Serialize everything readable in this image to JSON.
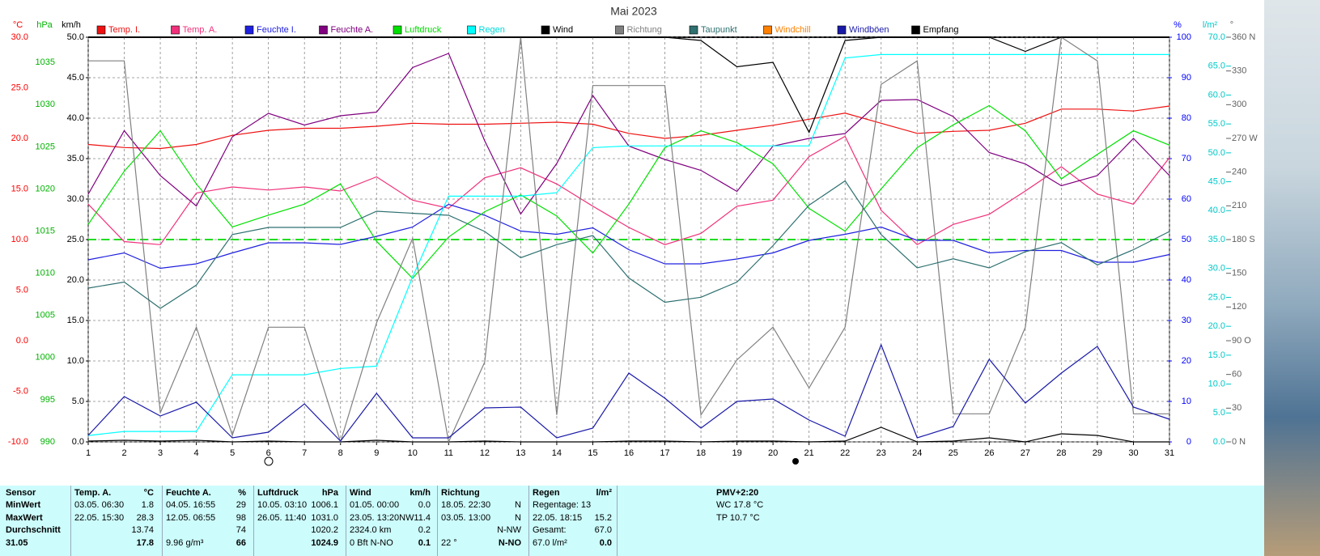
{
  "chart_data": {
    "type": "line",
    "title": "Mai 2023",
    "x": [
      1,
      2,
      3,
      4,
      5,
      6,
      7,
      8,
      9,
      10,
      11,
      12,
      13,
      14,
      15,
      16,
      17,
      18,
      19,
      20,
      21,
      22,
      23,
      24,
      25,
      26,
      27,
      28,
      29,
      30,
      31
    ],
    "xlim": [
      1,
      31
    ],
    "xticks": [
      1,
      2,
      3,
      4,
      5,
      6,
      7,
      8,
      9,
      10,
      11,
      12,
      13,
      14,
      15,
      16,
      17,
      18,
      19,
      20,
      21,
      22,
      23,
      24,
      25,
      26,
      27,
      28,
      29,
      30,
      31
    ],
    "grid": true,
    "axes": [
      {
        "id": "temp",
        "unit": "°C",
        "color": "#ff0000",
        "ylim": [
          -10,
          30
        ],
        "yticks": [
          {
            "value": -10,
            "label": "-10.0"
          },
          {
            "value": -5,
            "label": "-5.0"
          },
          {
            "value": 0,
            "label": "0.0"
          },
          {
            "value": 5,
            "label": "5.0"
          },
          {
            "value": 10,
            "label": "10.0"
          },
          {
            "value": 15,
            "label": "15.0"
          },
          {
            "value": 20,
            "label": "20.0"
          },
          {
            "value": 25,
            "label": "25.0"
          },
          {
            "value": 30,
            "label": "30.0"
          }
        ]
      },
      {
        "id": "pressure",
        "unit": "hPa",
        "color": "#00b400",
        "ylim": [
          990,
          1038
        ],
        "yticks": [
          990,
          995,
          1000,
          1005,
          1010,
          1015,
          1020,
          1025,
          1030,
          1035
        ]
      },
      {
        "id": "wind",
        "unit": "km/h",
        "color": "#000000",
        "ylim": [
          0,
          50
        ],
        "yticks": [
          {
            "value": 0,
            "label": "0.0"
          },
          {
            "value": 5,
            "label": "5.0"
          },
          {
            "value": 10,
            "label": "10.0"
          },
          {
            "value": 15,
            "label": "15.0"
          },
          {
            "value": 20,
            "label": "20.0"
          },
          {
            "value": 25,
            "label": "25.0"
          },
          {
            "value": 30,
            "label": "30.0"
          },
          {
            "value": 35,
            "label": "35.0"
          },
          {
            "value": 40,
            "label": "40.0"
          },
          {
            "value": 45,
            "label": "45.0"
          },
          {
            "value": 50,
            "label": "50.0"
          }
        ]
      },
      {
        "id": "humidity",
        "unit": "%",
        "color": "#0000ff",
        "ylim": [
          0,
          100
        ],
        "yticks": [
          0,
          10,
          20,
          30,
          40,
          50,
          60,
          70,
          80,
          90,
          100
        ]
      },
      {
        "id": "rain",
        "unit": "l/m²",
        "color": "#00c8c8",
        "ylim": [
          0,
          70
        ],
        "yticks": [
          {
            "value": 0,
            "label": "0.0"
          },
          {
            "value": 5,
            "label": "5.0"
          },
          {
            "value": 10,
            "label": "10.0"
          },
          {
            "value": 15,
            "label": "15.0"
          },
          {
            "value": 20,
            "label": "20.0"
          },
          {
            "value": 25,
            "label": "25.0"
          },
          {
            "value": 30,
            "label": "30.0"
          },
          {
            "value": 35,
            "label": "35.0"
          },
          {
            "value": 40,
            "label": "40.0"
          },
          {
            "value": 45,
            "label": "45.0"
          },
          {
            "value": 50,
            "label": "50.0"
          },
          {
            "value": 55,
            "label": "55.0"
          },
          {
            "value": 60,
            "label": "60.0"
          },
          {
            "value": 65,
            "label": "65.0"
          },
          {
            "value": 70,
            "label": "70.0"
          }
        ]
      },
      {
        "id": "direction",
        "unit": "°",
        "color": "#606060",
        "ylim": [
          0,
          360
        ],
        "yticks": [
          {
            "value": 0,
            "label": "0 N"
          },
          30,
          60,
          {
            "value": 90,
            "label": "90 O"
          },
          120,
          150,
          {
            "value": 180,
            "label": "180 S"
          },
          210,
          240,
          {
            "value": 270,
            "label": "270 W"
          },
          300,
          330,
          {
            "value": 360,
            "label": "360 N"
          }
        ]
      }
    ],
    "reference_line": {
      "axis": "direction",
      "value": 180,
      "color": "#22dd22"
    },
    "series": [
      {
        "name": "Temp. I.",
        "color": "#ee1111",
        "axis": "temp",
        "values": [
          19.4,
          19.1,
          19.0,
          19.4,
          20.3,
          20.8,
          21.0,
          21.0,
          21.2,
          21.5,
          21.4,
          21.4,
          21.5,
          21.6,
          21.4,
          20.5,
          20.0,
          20.3,
          20.8,
          21.3,
          21.9,
          22.5,
          21.5,
          20.5,
          20.7,
          20.8,
          21.5,
          22.9,
          22.9,
          22.7,
          23.2
        ]
      },
      {
        "name": "Temp. A.",
        "color": "#f0307a",
        "axis": "temp",
        "values": [
          13.5,
          9.8,
          9.5,
          14.6,
          15.2,
          14.9,
          15.2,
          14.8,
          16.2,
          13.9,
          13.1,
          16.1,
          17.1,
          15.5,
          13.3,
          11.2,
          9.5,
          10.6,
          13.3,
          13.9,
          18.2,
          20.2,
          12.9,
          9.5,
          11.5,
          12.5,
          14.8,
          17.2,
          14.5,
          13.5,
          18.1
        ]
      },
      {
        "name": "Feuchte I.",
        "color": "#2020e0",
        "axis": "humidity",
        "values": [
          45.0,
          46.7,
          42.9,
          44.0,
          46.7,
          49.2,
          49.2,
          48.8,
          50.8,
          53.1,
          58.7,
          56.0,
          52.1,
          51.3,
          52.9,
          47.5,
          44.0,
          44.0,
          45.2,
          46.7,
          49.8,
          51.3,
          53.1,
          49.8,
          49.8,
          46.7,
          47.3,
          47.3,
          44.4,
          44.4,
          46.3
        ]
      },
      {
        "name": "Feuchte A.",
        "color": "#800080",
        "axis": "humidity",
        "values": [
          61.2,
          76.9,
          65.8,
          58.3,
          75.4,
          81.2,
          78.3,
          80.6,
          81.5,
          92.5,
          96.0,
          74.4,
          56.3,
          68.8,
          85.6,
          73.1,
          69.8,
          67.1,
          61.9,
          73.1,
          75.0,
          76.2,
          84.4,
          84.6,
          80.4,
          71.5,
          68.7,
          63.3,
          65.8,
          75.0,
          65.8
        ]
      },
      {
        "name": "Luftdruck",
        "color": "#00e000",
        "axis": "pressure",
        "values": [
          1015.8,
          1022.1,
          1026.9,
          1020.6,
          1015.5,
          1016.9,
          1018.2,
          1020.6,
          1013.8,
          1009.4,
          1014.3,
          1017.3,
          1019.3,
          1016.8,
          1012.4,
          1018.2,
          1024.9,
          1026.9,
          1025.5,
          1023.0,
          1017.7,
          1015.0,
          1020.0,
          1024.9,
          1027.6,
          1029.9,
          1026.9,
          1021.2,
          1024.1,
          1026.9,
          1025.2
        ]
      },
      {
        "name": "Regen",
        "color": "#00ffff",
        "axis": "rain",
        "values": [
          1.1,
          1.8,
          1.8,
          1.8,
          11.6,
          11.6,
          11.6,
          12.7,
          13.1,
          28.5,
          42.5,
          42.5,
          42.5,
          43.1,
          50.9,
          51.2,
          51.2,
          51.2,
          51.2,
          51.2,
          51.2,
          66.4,
          67.0,
          67.0,
          67.0,
          67.0,
          67.0,
          67.0,
          67.0,
          67.0,
          67.0
        ]
      },
      {
        "name": "Wind",
        "color": "#000000",
        "axis": "wind",
        "values": [
          0.1,
          0.2,
          0.1,
          0.2,
          0.0,
          0.1,
          0.0,
          0.0,
          0.2,
          0.0,
          0.0,
          0.1,
          0.0,
          0.0,
          0.0,
          0.1,
          0.1,
          0.0,
          0.1,
          0.1,
          0.0,
          0.1,
          1.8,
          0.0,
          0.1,
          0.5,
          0.0,
          1.0,
          0.8,
          0.0,
          0.0
        ]
      },
      {
        "name": "Richtung",
        "color": "#808080",
        "axis": "direction",
        "values": [
          339,
          339,
          26,
          102,
          6,
          102,
          102,
          0,
          106,
          181,
          0,
          71,
          360,
          24,
          317,
          317,
          317,
          24,
          73,
          102,
          48,
          102,
          318,
          339,
          25,
          25,
          102,
          360,
          339,
          25,
          25
        ]
      },
      {
        "name": "Taupunkt",
        "color": "#2f7070",
        "axis": "temp",
        "values": [
          5.2,
          5.8,
          3.2,
          5.5,
          10.5,
          11.2,
          11.2,
          11.2,
          12.8,
          12.6,
          12.4,
          10.8,
          8.2,
          9.5,
          10.4,
          6.2,
          3.8,
          4.3,
          5.8,
          9.4,
          13.4,
          15.8,
          10.5,
          7.2,
          8.1,
          7.2,
          8.8,
          9.7,
          7.5,
          9.0,
          10.8
        ]
      },
      {
        "name": "Windchill",
        "color": "#ff8000",
        "axis": "temp",
        "values": [
          null,
          null,
          null,
          null,
          null,
          null,
          null,
          null,
          null,
          null,
          null,
          null,
          null,
          null,
          null,
          null,
          null,
          null,
          null,
          null,
          null,
          null,
          null,
          null,
          null,
          null,
          null,
          null,
          null,
          null,
          null
        ]
      },
      {
        "name": "Windböen",
        "color": "#1a1aa8",
        "axis": "wind",
        "values": [
          0.8,
          5.6,
          3.2,
          4.9,
          0.5,
          1.2,
          4.7,
          0.1,
          6.0,
          0.5,
          0.5,
          4.2,
          4.3,
          0.5,
          1.7,
          8.5,
          5.4,
          1.7,
          5.0,
          5.3,
          2.7,
          0.7,
          12.0,
          0.5,
          1.9,
          10.2,
          4.8,
          8.5,
          11.8,
          4.3,
          2.8
        ]
      },
      {
        "name": "Empfang",
        "color": "#000000",
        "axis": "humidity",
        "values": [
          100,
          100,
          100,
          100,
          100,
          100,
          100,
          100,
          100,
          100,
          100,
          100,
          100,
          100,
          100,
          100,
          100,
          99.2,
          92.7,
          93.8,
          76.5,
          99.2,
          100,
          100,
          100,
          100,
          96.5,
          100,
          100,
          100,
          100
        ]
      }
    ]
  },
  "table": {
    "sensor_label": "Sensor",
    "columns": [
      {
        "name": "Temp. A.",
        "unit": "°C"
      },
      {
        "name": "Feuchte A.",
        "unit": "%"
      },
      {
        "name": "Luftdruck",
        "unit": "hPa"
      },
      {
        "name": "Wind",
        "unit": "km/h"
      },
      {
        "name": "Richtung"
      },
      {
        "name": "Regen",
        "unit": "l/m²"
      }
    ],
    "rows": [
      {
        "label": "MinWert",
        "cells": [
          [
            "03.05.  06:30",
            "1.8"
          ],
          [
            "04.05.  16:55",
            "29"
          ],
          [
            "10.05.  03:10",
            "1006.1"
          ],
          [
            "01.05.  00:00",
            "0.0"
          ],
          [
            "18.05.  22:30",
            "N"
          ],
          [
            "Regentage: 13",
            null
          ]
        ]
      },
      {
        "label": "MaxWert",
        "cells": [
          [
            "22.05.  15:30",
            "28.3"
          ],
          [
            "12.05.  06:55",
            "98"
          ],
          [
            "26.05.  11:40",
            "1031.0"
          ],
          [
            "23.05.  13:20NW",
            "11.4"
          ],
          [
            "03.05.  13:00",
            "N"
          ],
          [
            "22.05.  18:15",
            "15.2"
          ]
        ]
      },
      {
        "label": "Durchschnitt",
        "cells": [
          [
            null,
            "13.74"
          ],
          [
            null,
            "74"
          ],
          [
            null,
            "1020.2"
          ],
          [
            "2324.0 km",
            "0.2"
          ],
          [
            null,
            "N-NW"
          ],
          [
            "Gesamt:",
            "67.0"
          ]
        ]
      },
      {
        "label": "31.05",
        "cells": [
          [
            null,
            "17.8"
          ],
          [
            "9.96 g/m³",
            "66"
          ],
          [
            null,
            "1024.9"
          ],
          [
            "0 Bft N-NO",
            "0.1"
          ],
          [
            "22 °",
            "N-NO"
          ],
          [
            "67.0 l/m²",
            "0.0"
          ]
        ]
      }
    ],
    "side_panel": {
      "title": "PMV+2:20",
      "lines": [
        "WC 17.8 °C",
        "TP 10.7 °C"
      ]
    }
  }
}
